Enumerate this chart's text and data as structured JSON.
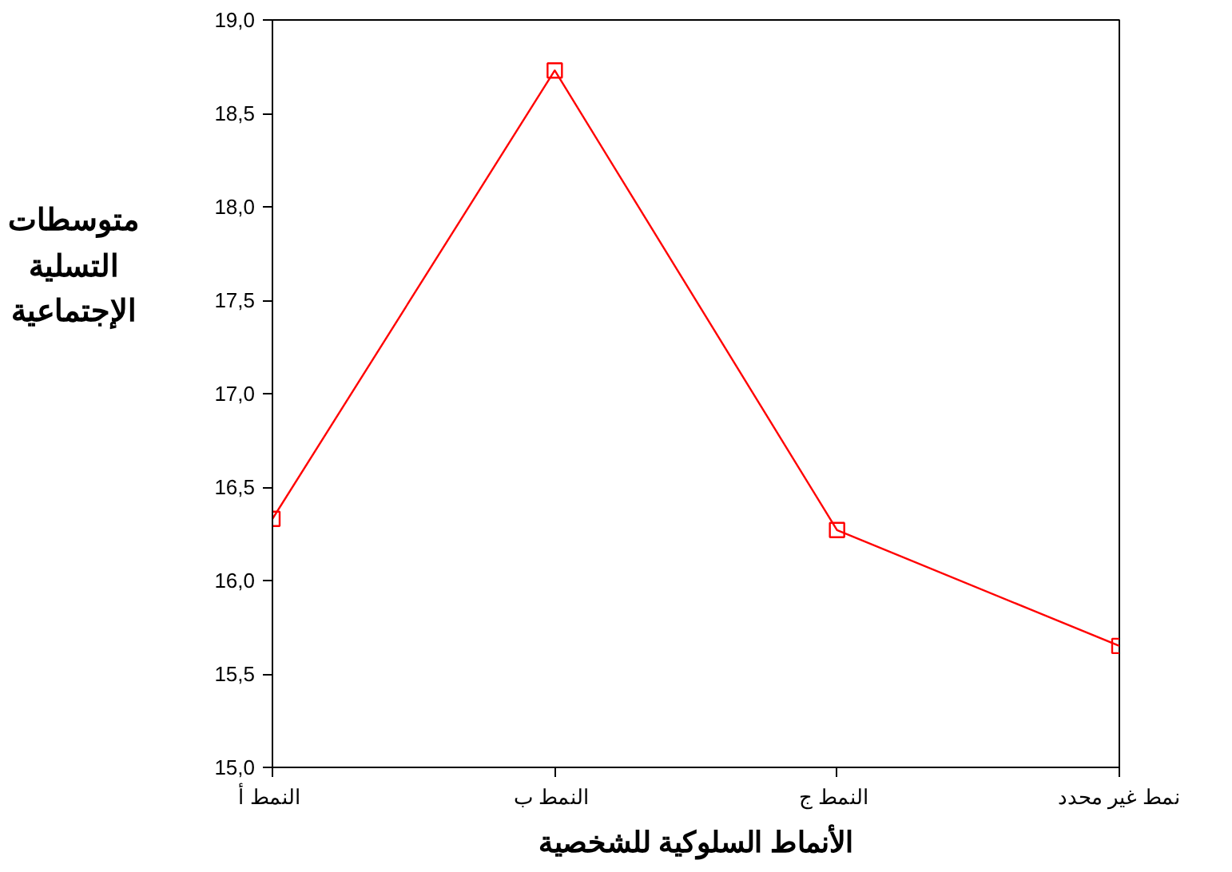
{
  "chart_data": {
    "type": "line",
    "xlabel": "الأنماط السلوكية للشخصية",
    "ylabel": "متوسطات\nالتسلية\nالإجتماعية",
    "categories": [
      "النمط  أ",
      "النمط  ب",
      "النمط  ج",
      "نمط غير محدد"
    ],
    "series": [
      {
        "color": "#ff0000",
        "values": [
          16.33,
          18.73,
          16.27,
          15.65
        ]
      }
    ],
    "ylim": [
      15,
      19
    ],
    "yticks": [
      {
        "value": 15,
        "label": "15,0"
      },
      {
        "value": 15.5,
        "label": "15,5"
      },
      {
        "value": 16,
        "label": "16,0"
      },
      {
        "value": 16.5,
        "label": "16,5"
      },
      {
        "value": 17,
        "label": "17,0"
      },
      {
        "value": 17.5,
        "label": "17,5"
      },
      {
        "value": 18,
        "label": "18,0"
      },
      {
        "value": 18.5,
        "label": "18,5"
      },
      {
        "value": 19,
        "label": "19,0"
      }
    ],
    "grid": false,
    "marker": "square",
    "line_style": "solid"
  }
}
